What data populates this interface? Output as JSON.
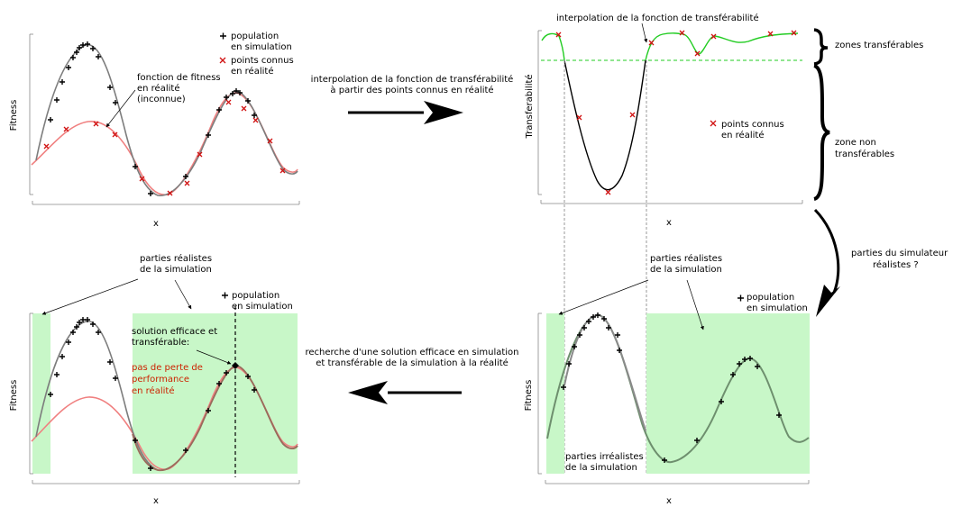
{
  "panel_tl": {
    "ylabel": "Fitness",
    "xlabel": "x",
    "legend_population": [
      "population",
      "en simulation"
    ],
    "legend_points": [
      "points connus",
      "en réalité"
    ],
    "annotation_fitness": [
      "fonction de fitness",
      "en réalité",
      "(inconnue)"
    ]
  },
  "panel_tr": {
    "ylabel": "Transferabilité",
    "xlabel": "x",
    "title": "interpolation de la fonction de transférabilité",
    "legend_points": [
      "points connus",
      "en réalité"
    ],
    "zone_transferable": "zones transférables",
    "zone_non_transferable": [
      "zone non",
      "transférables"
    ]
  },
  "panel_br": {
    "ylabel": "Fitness",
    "xlabel": "x",
    "realistic_label": [
      "parties réalistes",
      "de la simulation"
    ],
    "unrealistic_label": [
      "parties irréalistes",
      "de la simulation"
    ],
    "legend_population": [
      "population",
      "en simulation"
    ]
  },
  "panel_bl": {
    "ylabel": "Fitness",
    "xlabel": "x",
    "realistic_label": [
      "parties réalistes",
      "de la simulation"
    ],
    "legend_population": [
      "population",
      "en simulation"
    ],
    "solution_label": [
      "solution efficace et",
      "transférable:"
    ],
    "no_loss_label": [
      "pas de perte de",
      "performance",
      "en réalité"
    ]
  },
  "arrows": {
    "top": [
      "interpolation de la fonction de transférabilité",
      "à partir des points connus en réalité"
    ],
    "right": [
      "parties du simulateur",
      "réalistes ?"
    ],
    "bottom": [
      "recherche d'une solution efficace en simulation",
      "et transférable de la simulation à la réalité"
    ]
  },
  "colors": {
    "simulation_curve": "#7d7d7d",
    "reality_curve": "#f08080",
    "transferable_curve": "#22cc22",
    "non_transferable_curve": "#000000",
    "realistic_zone": "#c8f7c8",
    "highlight_text": "#cc2200"
  }
}
